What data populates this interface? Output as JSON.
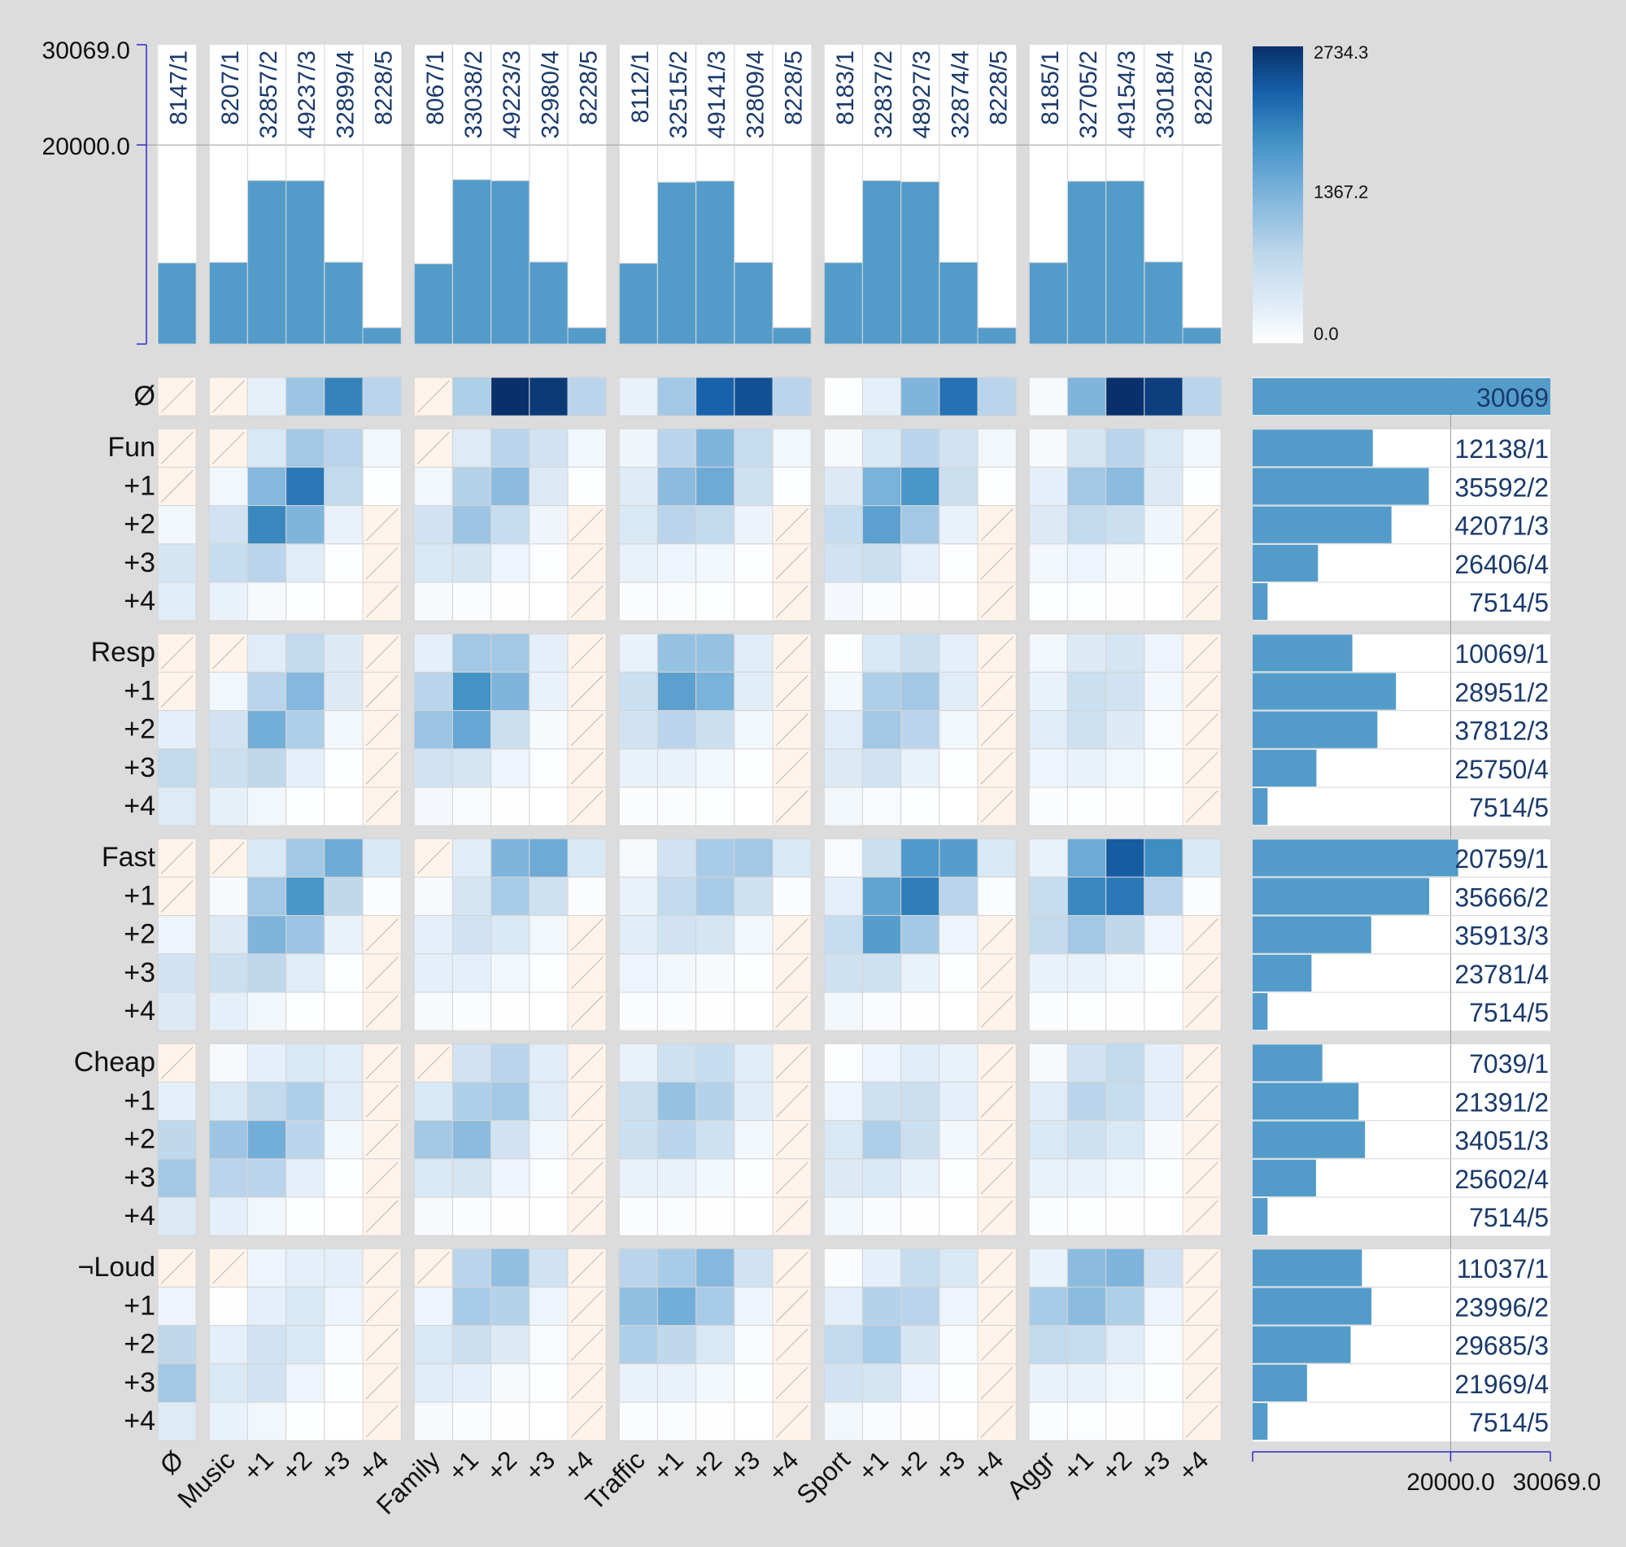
{
  "chart_data": {
    "type": "heatmap",
    "column_groups": [
      {
        "labels": [
          "Ø"
        ]
      },
      {
        "labels": [
          "Music",
          "+1",
          "+2",
          "+3",
          "+4"
        ]
      },
      {
        "labels": [
          "Family",
          "+1",
          "+2",
          "+3",
          "+4"
        ]
      },
      {
        "labels": [
          "Traffic",
          "+1",
          "+2",
          "+3",
          "+4"
        ]
      },
      {
        "labels": [
          "Sport",
          "+1",
          "+2",
          "+3",
          "+4"
        ]
      },
      {
        "labels": [
          "Aggr",
          "+1",
          "+2",
          "+3",
          "+4"
        ]
      }
    ],
    "column_count_labels": [
      "8147/1",
      "8207/1",
      "32857/2",
      "49237/3",
      "32899/4",
      "8228/5",
      "8067/1",
      "33038/2",
      "49223/3",
      "32980/4",
      "8228/5",
      "8112/1",
      "32515/2",
      "49141/3",
      "32809/4",
      "8228/5",
      "8183/1",
      "32837/2",
      "48927/3",
      "32874/4",
      "8228/5",
      "8185/1",
      "32705/2",
      "49154/3",
      "33018/4",
      "8228/5"
    ],
    "column_totals": [
      8147,
      8207,
      16428,
      16412,
      8225,
      1646,
      8067,
      16519,
      16408,
      8245,
      1646,
      8112,
      16258,
      16380,
      8202,
      1646,
      8183,
      16419,
      16309,
      8219,
      1646,
      8185,
      16353,
      16385,
      8255,
      1646
    ],
    "column_axis": {
      "ticks": [
        "30069.0",
        "20000.0"
      ],
      "max": 30069,
      "gridline": 20000
    },
    "row_groups": [
      {
        "labels": [
          "Ø"
        ]
      },
      {
        "labels": [
          "Fun",
          "+1",
          "+2",
          "+3",
          "+4"
        ]
      },
      {
        "labels": [
          "Resp",
          "+1",
          "+2",
          "+3",
          "+4"
        ]
      },
      {
        "labels": [
          "Fast",
          "+1",
          "+2",
          "+3",
          "+4"
        ]
      },
      {
        "labels": [
          "Cheap",
          "+1",
          "+2",
          "+3",
          "+4"
        ]
      },
      {
        "labels": [
          "¬Loud",
          "+1",
          "+2",
          "+3",
          "+4"
        ]
      }
    ],
    "row_count_labels": [
      "30069",
      "12138/1",
      "35592/2",
      "42071/3",
      "26406/4",
      "7514/5",
      "10069/1",
      "28951/2",
      "37812/3",
      "25750/4",
      "7514/5",
      "20759/1",
      "35666/2",
      "35913/3",
      "23781/4",
      "7514/5",
      "7039/1",
      "21391/2",
      "34051/3",
      "25602/4",
      "7514/5",
      "11037/1",
      "23996/2",
      "29685/3",
      "21969/4",
      "7514/5"
    ],
    "row_totals": [
      30069,
      12138,
      17796,
      14024,
      6602,
      1503,
      10069,
      14476,
      12604,
      6438,
      1503,
      20759,
      17833,
      11971,
      5945,
      1503,
      7039,
      10696,
      11350,
      6401,
      1503,
      11037,
      11998,
      9895,
      5492,
      1503
    ],
    "row_axis": {
      "ticks": [
        "20000.0",
        "30069.0"
      ],
      "max": 30069,
      "gridline": 20000
    },
    "colorbar": {
      "min": 0.0,
      "max": 2734.3,
      "ticks": [
        "2734.3",
        "1367.2",
        "0.0"
      ]
    },
    "colors": {
      "bar": "#539cca",
      "grid": "#d4d4d4",
      "axis": "#2b2bc8",
      "label": "#1a3a6b",
      "empty_cell": "#fff3ea",
      "background": "#dcdcdc"
    },
    "cells": [
      [
        -1,
        -1,
        280,
        1100,
        2000,
        850,
        -1,
        950,
        2734,
        2650,
        850,
        250,
        1050,
        2300,
        2450,
        850,
        20,
        300,
        1350,
        2150,
        850,
        100,
        1350,
        2734,
        2600,
        850
      ],
      [
        -1,
        -1,
        450,
        1050,
        850,
        150,
        -1,
        380,
        850,
        550,
        150,
        180,
        850,
        1350,
        700,
        150,
        100,
        450,
        850,
        550,
        150,
        100,
        500,
        850,
        450,
        150
      ],
      [
        -1,
        150,
        1300,
        2100,
        750,
        30,
        150,
        900,
        1250,
        400,
        30,
        380,
        1250,
        1500,
        600,
        30,
        400,
        1400,
        1800,
        650,
        30,
        300,
        1050,
        1250,
        400,
        30
      ],
      [
        150,
        550,
        1950,
        1350,
        250,
        -1,
        550,
        1100,
        700,
        180,
        -1,
        450,
        850,
        750,
        220,
        -1,
        700,
        1650,
        1050,
        250,
        -1,
        400,
        750,
        650,
        180,
        -1
      ],
      [
        500,
        700,
        850,
        350,
        30,
        -1,
        450,
        500,
        200,
        30,
        -1,
        250,
        200,
        150,
        30,
        -1,
        550,
        650,
        300,
        30,
        -1,
        150,
        200,
        100,
        20,
        -1
      ],
      [
        350,
        250,
        100,
        20,
        5,
        -1,
        100,
        50,
        10,
        3,
        -1,
        60,
        50,
        20,
        5,
        -1,
        120,
        60,
        15,
        3,
        -1,
        40,
        30,
        10,
        3,
        -1
      ],
      [
        -1,
        -1,
        350,
        750,
        400,
        -1,
        300,
        1050,
        1050,
        300,
        -1,
        250,
        1150,
        1150,
        350,
        -1,
        20,
        450,
        650,
        300,
        -1,
        150,
        400,
        500,
        200,
        -1
      ],
      [
        -1,
        150,
        850,
        1300,
        400,
        -1,
        850,
        1850,
        1350,
        250,
        -1,
        650,
        1650,
        1400,
        350,
        -1,
        150,
        950,
        1050,
        350,
        -1,
        250,
        650,
        550,
        150,
        -1
      ],
      [
        300,
        550,
        1450,
        950,
        150,
        -1,
        1100,
        1550,
        650,
        100,
        -1,
        550,
        850,
        650,
        150,
        -1,
        350,
        1050,
        850,
        150,
        -1,
        350,
        600,
        400,
        80,
        -1
      ],
      [
        750,
        650,
        800,
        300,
        20,
        -1,
        550,
        500,
        200,
        30,
        -1,
        250,
        250,
        150,
        30,
        -1,
        400,
        550,
        250,
        30,
        -1,
        200,
        250,
        150,
        20,
        -1
      ],
      [
        380,
        280,
        150,
        20,
        5,
        -1,
        120,
        80,
        15,
        5,
        -1,
        60,
        50,
        20,
        5,
        -1,
        150,
        80,
        20,
        5,
        -1,
        60,
        40,
        15,
        5,
        -1
      ],
      [
        -1,
        -1,
        450,
        1050,
        1500,
        450,
        -1,
        350,
        1350,
        1500,
        450,
        100,
        550,
        1000,
        1050,
        450,
        80,
        650,
        1750,
        1700,
        450,
        250,
        1500,
        2350,
        1900,
        450
      ],
      [
        -1,
        100,
        1050,
        1800,
        800,
        50,
        100,
        500,
        1000,
        600,
        50,
        250,
        750,
        1000,
        600,
        50,
        300,
        1600,
        2050,
        850,
        50,
        700,
        1950,
        2100,
        850,
        50
      ],
      [
        200,
        400,
        1350,
        1100,
        250,
        -1,
        300,
        550,
        450,
        150,
        -1,
        350,
        550,
        500,
        150,
        -1,
        700,
        1700,
        1050,
        200,
        -1,
        750,
        1050,
        800,
        200,
        -1
      ],
      [
        550,
        650,
        800,
        350,
        30,
        -1,
        300,
        300,
        150,
        20,
        -1,
        200,
        150,
        100,
        20,
        -1,
        600,
        600,
        250,
        20,
        -1,
        250,
        250,
        150,
        20,
        -1
      ],
      [
        400,
        300,
        150,
        20,
        5,
        -1,
        100,
        60,
        10,
        3,
        -1,
        60,
        50,
        15,
        3,
        -1,
        150,
        70,
        15,
        3,
        -1,
        50,
        30,
        10,
        3,
        -1
      ],
      [
        -1,
        100,
        300,
        450,
        350,
        -1,
        -1,
        550,
        850,
        350,
        -1,
        250,
        600,
        700,
        350,
        -1,
        30,
        200,
        350,
        250,
        -1,
        100,
        550,
        750,
        300,
        -1
      ],
      [
        300,
        450,
        750,
        950,
        350,
        -1,
        450,
        950,
        1050,
        350,
        -1,
        650,
        1150,
        900,
        350,
        -1,
        200,
        600,
        650,
        300,
        -1,
        350,
        850,
        700,
        300,
        -1
      ],
      [
        800,
        1100,
        1450,
        850,
        150,
        -1,
        1050,
        1250,
        550,
        150,
        -1,
        650,
        850,
        600,
        150,
        -1,
        450,
        950,
        650,
        150,
        -1,
        450,
        600,
        450,
        100,
        -1
      ],
      [
        1050,
        850,
        850,
        300,
        20,
        -1,
        450,
        500,
        200,
        30,
        -1,
        250,
        250,
        150,
        30,
        -1,
        400,
        450,
        250,
        30,
        -1,
        250,
        250,
        150,
        20,
        -1
      ],
      [
        400,
        300,
        150,
        20,
        5,
        -1,
        100,
        60,
        10,
        3,
        -1,
        60,
        50,
        15,
        3,
        -1,
        150,
        70,
        15,
        3,
        -1,
        50,
        30,
        10,
        3,
        -1
      ],
      [
        -1,
        -1,
        200,
        300,
        300,
        -1,
        -1,
        850,
        1200,
        550,
        -1,
        850,
        1000,
        1300,
        550,
        -1,
        60,
        300,
        700,
        450,
        -1,
        250,
        1250,
        1350,
        550,
        -1
      ],
      [
        200,
        15,
        300,
        450,
        200,
        -1,
        200,
        1000,
        900,
        200,
        -1,
        1200,
        1450,
        1000,
        200,
        -1,
        300,
        900,
        850,
        200,
        -1,
        1000,
        1250,
        950,
        200,
        -1
      ],
      [
        800,
        300,
        550,
        450,
        80,
        -1,
        450,
        650,
        400,
        80,
        -1,
        950,
        800,
        450,
        80,
        -1,
        750,
        1000,
        500,
        80,
        -1,
        750,
        700,
        350,
        80,
        -1
      ],
      [
        1050,
        450,
        550,
        200,
        20,
        -1,
        350,
        300,
        100,
        20,
        -1,
        250,
        250,
        150,
        20,
        -1,
        550,
        500,
        200,
        20,
        -1,
        250,
        250,
        150,
        20,
        -1
      ],
      [
        380,
        250,
        150,
        20,
        5,
        -1,
        100,
        60,
        10,
        3,
        -1,
        60,
        50,
        15,
        3,
        -1,
        150,
        70,
        15,
        3,
        -1,
        50,
        30,
        10,
        3,
        -1
      ]
    ]
  }
}
